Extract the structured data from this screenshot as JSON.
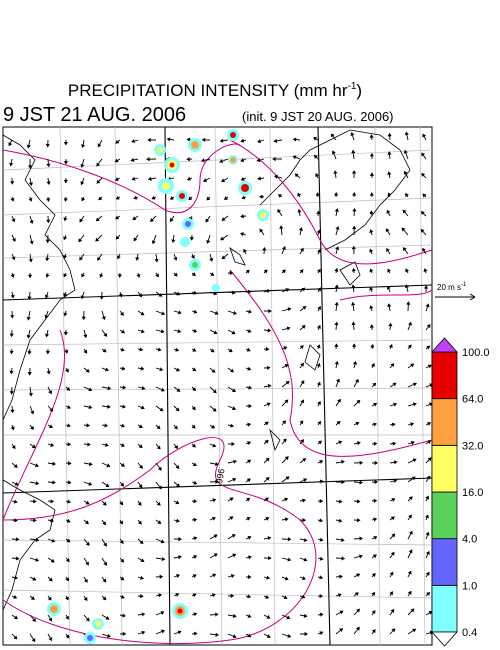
{
  "title": {
    "text": "PRECIPITATION INTENSITY (mm hr",
    "superscript": "-1",
    "closing": ")"
  },
  "valid_time": "9 JST 21 AUG. 2006",
  "init_time": "(init. 9 JST 20 AUG. 2006)",
  "wind_legend": {
    "text": "20 m s",
    "superscript": "-1"
  },
  "contour_label": "996",
  "colorbar": {
    "labels": [
      "0.4",
      "1.0",
      "4.0",
      "16.0",
      "32.0",
      "64.0",
      "100.0"
    ],
    "colors": [
      "#80ffff",
      "#6464ff",
      "#5ad25a",
      "#ffff64",
      "#ffa040",
      "#e60000"
    ],
    "over_color": "#c040ff",
    "under_color": "#ffffff"
  }
}
